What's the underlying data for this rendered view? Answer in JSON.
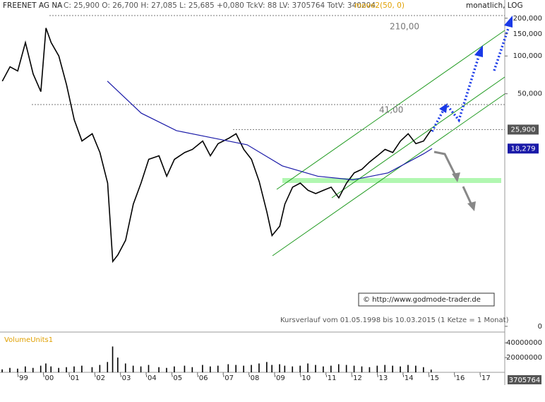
{
  "chart_data": [
    {
      "type": "line",
      "quote": "C: 25,900 O: 26,700 H: 27,085 L: 25,685 +0,080 TckV: 88 LV: 3705764 TotV: 340204",
      "scale_label": "monatlich, LOG",
      "log": true,
      "levels": [
        {
          "value": 210,
          "label": "210,00"
        },
        {
          "value": 41,
          "label": "41,00"
        }
      ],
      "annotations": [
        "© http://www.godmode-trader.de",
        "Kursverlauf vom 01.05.1998 bis 10.03.2015 (1 Ketze = 1 Monat)"
      ],
      "xlim": [
        1998.31,
        2017.96
      ],
      "xticks": [
        {
          "value": 1999,
          "label": "'99"
        },
        {
          "value": 2000,
          "label": "'00"
        },
        {
          "value": 2001,
          "label": "'01"
        },
        {
          "value": 2002,
          "label": "'02"
        },
        {
          "value": 2003,
          "label": "'03"
        },
        {
          "value": 2004,
          "label": "'04"
        },
        {
          "value": 2005,
          "label": "'05"
        },
        {
          "value": 2006,
          "label": "'06"
        },
        {
          "value": 2007,
          "label": "'07"
        },
        {
          "value": 2008,
          "label": "'08"
        },
        {
          "value": 2009,
          "label": "'09"
        },
        {
          "value": 2010,
          "label": "'10"
        },
        {
          "value": 2011,
          "label": "'11"
        },
        {
          "value": 2012,
          "label": "'12"
        },
        {
          "value": 2013,
          "label": "'13"
        },
        {
          "value": 2014,
          "label": "'14"
        },
        {
          "value": 2015,
          "label": "'15"
        },
        {
          "value": 2016,
          "label": "'16"
        },
        {
          "value": 2017,
          "label": "'17"
        }
      ],
      "ylim": [
        0.63,
        230
      ],
      "yticks": [
        {
          "value": 200,
          "label": "200,000"
        },
        {
          "value": 150,
          "label": "150,000"
        },
        {
          "value": 100,
          "label": "100,000"
        },
        {
          "value": 50,
          "label": "50,000"
        },
        {
          "value": 0.7,
          "label": "0"
        }
      ],
      "series": [
        {
          "name": "FREENET AG NA",
          "color": "#000000",
          "label_color": "#555555",
          "x": [
            1998.4,
            1998.7,
            1999.0,
            1999.3,
            1999.6,
            1999.9,
            2000.1,
            2000.3,
            2000.6,
            2000.9,
            2001.2,
            2001.5,
            2001.9,
            2002.2,
            2002.5,
            2002.7,
            2002.9,
            2003.2,
            2003.5,
            2003.8,
            2004.1,
            2004.5,
            2004.8,
            2005.1,
            2005.5,
            2005.8,
            2006.2,
            2006.5,
            2006.8,
            2007.2,
            2007.5,
            2007.8,
            2008.1,
            2008.4,
            2008.7,
            2008.9,
            2009.2,
            2009.4,
            2009.7,
            2010.0,
            2010.3,
            2010.6,
            2010.9,
            2011.2,
            2011.5,
            2011.8,
            2012.1,
            2012.4,
            2012.7,
            2013.0,
            2013.3,
            2013.6,
            2013.9,
            2014.2,
            2014.5,
            2014.8,
            2015.1
          ],
          "values": [
            63,
            82,
            76,
            128,
            72,
            52,
            167,
            128,
            100,
            59,
            31,
            21,
            24,
            17,
            9.7,
            2.3,
            2.6,
            3.4,
            6.6,
            9.7,
            15,
            16,
            11,
            15,
            17,
            18,
            21,
            16,
            20,
            22,
            24,
            18,
            15,
            10,
            5.7,
            3.7,
            4.4,
            6.6,
            9,
            9.7,
            8.5,
            8,
            8.5,
            9,
            7.4,
            9.7,
            11.7,
            12.5,
            14.3,
            16,
            18,
            17,
            21,
            24,
            20,
            21,
            25.9
          ],
          "value_labels": [
            null,
            null,
            null,
            null,
            null,
            null,
            null,
            null,
            null,
            null,
            null,
            null,
            null,
            null,
            null,
            null,
            null,
            null,
            null,
            null,
            null,
            null,
            null,
            null,
            null,
            null,
            null,
            null,
            null,
            null,
            null,
            null,
            null,
            null,
            null,
            null,
            null,
            null,
            null,
            null,
            null,
            null,
            null,
            null,
            null,
            null,
            null,
            null,
            null,
            null,
            null,
            null,
            null,
            null,
            null,
            null,
            "25,900"
          ]
        },
        {
          "name": "move2(50, 0)",
          "color": "#1a1aa8",
          "label_color": "#e0a000",
          "x": [
            2002.49,
            2003.81,
            2005.18,
            2006.55,
            2007.93,
            2009.3,
            2010.68,
            2012.05,
            2013.42,
            2014.8,
            2015.13
          ],
          "values": [
            63,
            35,
            25.4,
            22.3,
            19.6,
            13.3,
            11.0,
            10.3,
            11.7,
            16.6,
            18.279
          ],
          "value_labels": [
            null,
            null,
            null,
            null,
            null,
            null,
            null,
            null,
            null,
            null,
            "18,279"
          ]
        }
      ]
    },
    {
      "type": "bar",
      "title": "VolumeUnits1",
      "color": "#000000",
      "x": [
        1998.4,
        1998.7,
        1999.0,
        1999.3,
        1999.6,
        1999.9,
        2000.1,
        2000.3,
        2000.6,
        2000.9,
        2001.2,
        2001.5,
        2001.9,
        2002.2,
        2002.5,
        2002.7,
        2002.9,
        2003.2,
        2003.5,
        2003.8,
        2004.1,
        2004.5,
        2004.8,
        2005.1,
        2005.5,
        2005.8,
        2006.2,
        2006.5,
        2006.8,
        2007.2,
        2007.5,
        2007.8,
        2008.1,
        2008.4,
        2008.7,
        2008.9,
        2009.2,
        2009.4,
        2009.7,
        2010.0,
        2010.3,
        2010.6,
        2010.9,
        2011.2,
        2011.5,
        2011.8,
        2012.1,
        2012.4,
        2012.7,
        2013.0,
        2013.3,
        2013.6,
        2013.9,
        2014.2,
        2014.5,
        2014.8,
        2015.1
      ],
      "values": [
        4000000,
        6000000,
        5000000,
        8000000,
        6000000,
        9000000,
        12000000,
        8000000,
        6000000,
        7000000,
        8000000,
        9000000,
        7000000,
        10000000,
        14000000,
        35000000,
        20000000,
        12000000,
        9000000,
        8000000,
        10000000,
        7000000,
        6000000,
        8000000,
        9000000,
        7000000,
        10000000,
        8000000,
        9000000,
        11000000,
        10000000,
        9000000,
        10000000,
        12000000,
        14000000,
        10000000,
        11000000,
        9000000,
        8000000,
        9000000,
        12000000,
        10000000,
        8000000,
        9000000,
        11000000,
        10000000,
        9000000,
        8000000,
        7000000,
        9000000,
        10000000,
        9000000,
        8000000,
        10000000,
        9000000,
        7000000,
        3705764
      ],
      "ylim": [
        0,
        45000000
      ],
      "yticks": [
        40000000,
        20000000
      ]
    }
  ]
}
